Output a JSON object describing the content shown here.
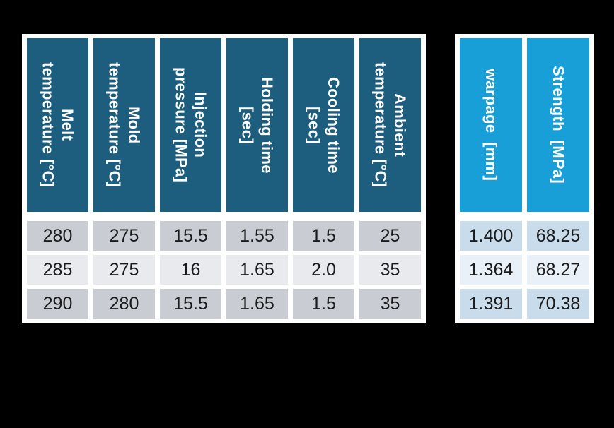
{
  "colors": {
    "header-dark": "#1d5e7f",
    "header-cyan": "#189fd8",
    "row-gray-dark": "#c9cdd3",
    "row-gray-light": "#e8eaed",
    "row-blue-dark": "#c9dcec",
    "row-blue-light": "#e9f0f7",
    "panel-white": "#ffffff",
    "text-dark": "#1b1b1b",
    "bg": "#000000"
  },
  "input_table": {
    "headers": [
      "Melt\ntemperature [°C]",
      "Mold\ntemperature [°C]",
      "Injection\npressure [MPa]",
      "Holding time\n[sec]",
      "Cooling time\n[sec]",
      "Ambient\ntemperature [°C]"
    ],
    "rows": [
      [
        "280",
        "275",
        "15.5",
        "1.55",
        "1.5",
        "25"
      ],
      [
        "285",
        "275",
        "16",
        "1.65",
        "2.0",
        "35"
      ],
      [
        "290",
        "280",
        "15.5",
        "1.65",
        "1.5",
        "35"
      ]
    ]
  },
  "output_table": {
    "headers": [
      "warpage  [mm]",
      "Strength  [MPa]"
    ],
    "rows": [
      [
        "1.400",
        "68.25"
      ],
      [
        "1.364",
        "68.27"
      ],
      [
        "1.391",
        "70.38"
      ]
    ]
  }
}
